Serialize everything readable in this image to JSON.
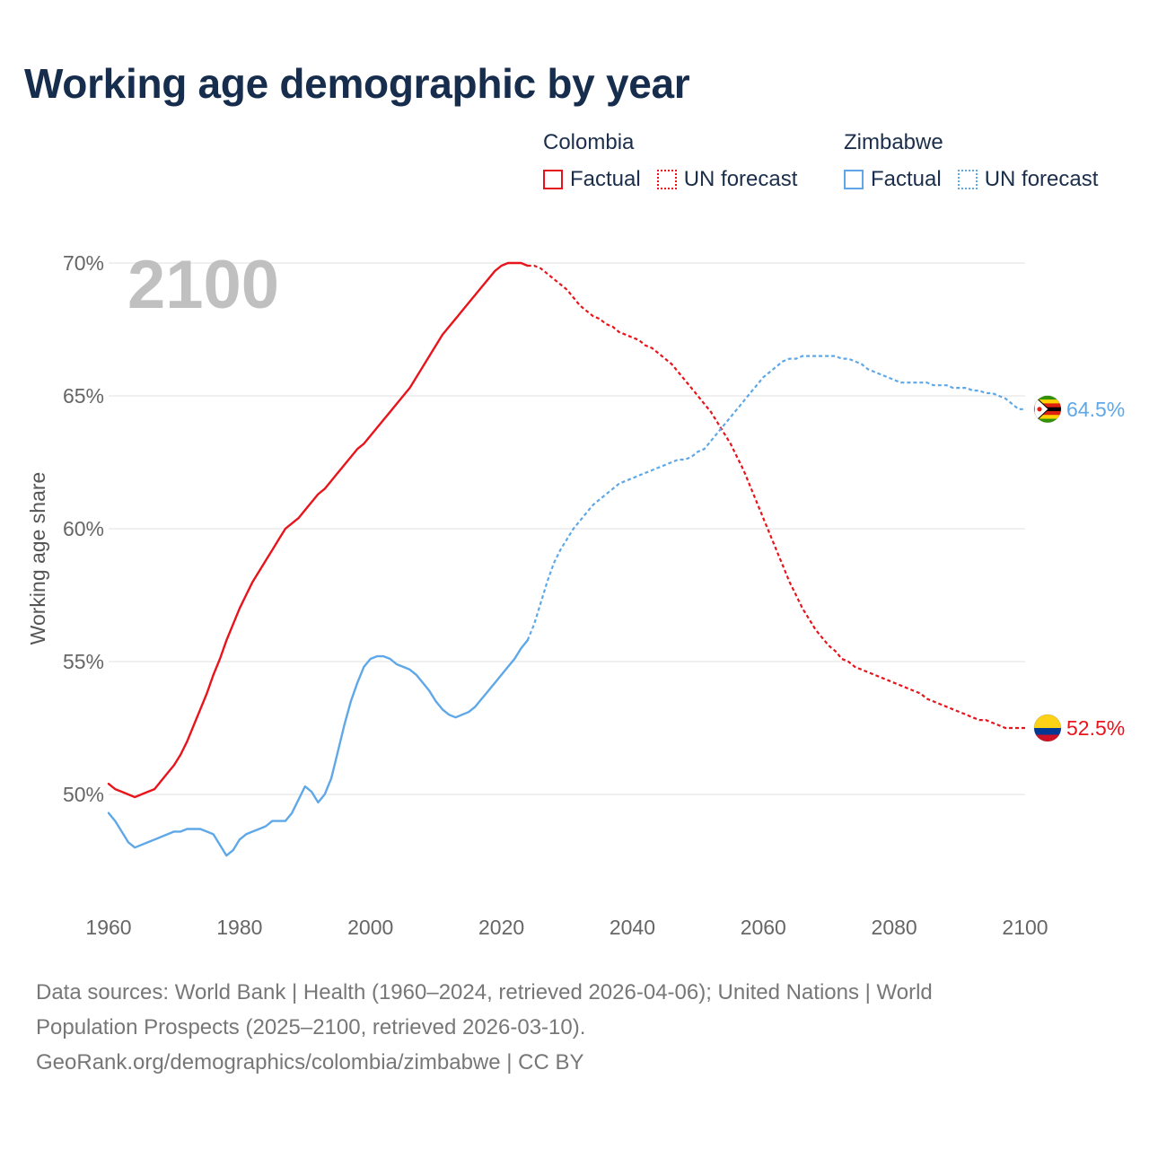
{
  "title": "Working age demographic by year",
  "legend": {
    "groups": [
      {
        "name": "Colombia",
        "color": "#e8141c",
        "factual_label": "Factual",
        "forecast_label": "UN forecast"
      },
      {
        "name": "Zimbabwe",
        "color": "#5fa8e8",
        "factual_label": "Factual",
        "forecast_label": "UN forecast"
      }
    ]
  },
  "footer": {
    "line1": "Data sources: World Bank | Health (1960–2024, retrieved 2026-04-06); United Nations | World",
    "line2": "Population Prospects (2025–2100, retrieved 2026-03-10).",
    "line3": "GeoRank.org/demographics/colombia/zimbabwe | CC BY"
  },
  "chart_data": {
    "type": "line",
    "title": "Working age demographic by year",
    "ylabel": "Working age share",
    "xlabel": "",
    "year_watermark": "2100",
    "xlim": [
      1960,
      2100
    ],
    "ylim": [
      46.5,
      71.5
    ],
    "x_ticks": [
      "1960",
      "1980",
      "2000",
      "2020",
      "2040",
      "2060",
      "2080",
      "2100"
    ],
    "y_ticks": [
      {
        "value": 50,
        "label": "50%"
      },
      {
        "value": 55,
        "label": "55%"
      },
      {
        "value": 60,
        "label": "60%"
      },
      {
        "value": 65,
        "label": "65%"
      },
      {
        "value": 70,
        "label": "70%"
      }
    ],
    "grid": true,
    "factual_until": 2024,
    "series": [
      {
        "name": "Colombia",
        "color": "#e8141c",
        "end_label": "52.5%",
        "end_value": 52.5,
        "flag_colors": [
          "#fcd116",
          "#003893",
          "#ce1126"
        ],
        "points": [
          [
            1960,
            50.4
          ],
          [
            1961,
            50.2
          ],
          [
            1962,
            50.1
          ],
          [
            1963,
            50.0
          ],
          [
            1964,
            49.9
          ],
          [
            1965,
            50.0
          ],
          [
            1966,
            50.1
          ],
          [
            1967,
            50.2
          ],
          [
            1968,
            50.5
          ],
          [
            1969,
            50.8
          ],
          [
            1970,
            51.1
          ],
          [
            1971,
            51.5
          ],
          [
            1972,
            52.0
          ],
          [
            1973,
            52.6
          ],
          [
            1974,
            53.2
          ],
          [
            1975,
            53.8
          ],
          [
            1976,
            54.5
          ],
          [
            1977,
            55.1
          ],
          [
            1978,
            55.8
          ],
          [
            1979,
            56.4
          ],
          [
            1980,
            57.0
          ],
          [
            1981,
            57.5
          ],
          [
            1982,
            58.0
          ],
          [
            1983,
            58.4
          ],
          [
            1984,
            58.8
          ],
          [
            1985,
            59.2
          ],
          [
            1986,
            59.6
          ],
          [
            1987,
            60.0
          ],
          [
            1988,
            60.2
          ],
          [
            1989,
            60.4
          ],
          [
            1990,
            60.7
          ],
          [
            1991,
            61.0
          ],
          [
            1992,
            61.3
          ],
          [
            1993,
            61.5
          ],
          [
            1994,
            61.8
          ],
          [
            1995,
            62.1
          ],
          [
            1996,
            62.4
          ],
          [
            1997,
            62.7
          ],
          [
            1998,
            63.0
          ],
          [
            1999,
            63.2
          ],
          [
            2000,
            63.5
          ],
          [
            2001,
            63.8
          ],
          [
            2002,
            64.1
          ],
          [
            2003,
            64.4
          ],
          [
            2004,
            64.7
          ],
          [
            2005,
            65.0
          ],
          [
            2006,
            65.3
          ],
          [
            2007,
            65.7
          ],
          [
            2008,
            66.1
          ],
          [
            2009,
            66.5
          ],
          [
            2010,
            66.9
          ],
          [
            2011,
            67.3
          ],
          [
            2012,
            67.6
          ],
          [
            2013,
            67.9
          ],
          [
            2014,
            68.2
          ],
          [
            2015,
            68.5
          ],
          [
            2016,
            68.8
          ],
          [
            2017,
            69.1
          ],
          [
            2018,
            69.4
          ],
          [
            2019,
            69.7
          ],
          [
            2020,
            69.9
          ],
          [
            2021,
            70.0
          ],
          [
            2022,
            70.0
          ],
          [
            2023,
            70.0
          ],
          [
            2024,
            69.9
          ],
          [
            2025,
            69.9
          ],
          [
            2026,
            69.8
          ],
          [
            2027,
            69.6
          ],
          [
            2028,
            69.4
          ],
          [
            2029,
            69.2
          ],
          [
            2030,
            69.0
          ],
          [
            2031,
            68.7
          ],
          [
            2032,
            68.4
          ],
          [
            2033,
            68.2
          ],
          [
            2034,
            68.0
          ],
          [
            2035,
            67.9
          ],
          [
            2036,
            67.7
          ],
          [
            2037,
            67.6
          ],
          [
            2038,
            67.4
          ],
          [
            2039,
            67.3
          ],
          [
            2040,
            67.2
          ],
          [
            2041,
            67.1
          ],
          [
            2042,
            66.9
          ],
          [
            2043,
            66.8
          ],
          [
            2044,
            66.6
          ],
          [
            2045,
            66.4
          ],
          [
            2046,
            66.2
          ],
          [
            2047,
            65.9
          ],
          [
            2048,
            65.6
          ],
          [
            2049,
            65.3
          ],
          [
            2050,
            65.0
          ],
          [
            2051,
            64.7
          ],
          [
            2052,
            64.4
          ],
          [
            2053,
            64.0
          ],
          [
            2054,
            63.6
          ],
          [
            2055,
            63.2
          ],
          [
            2056,
            62.7
          ],
          [
            2057,
            62.2
          ],
          [
            2058,
            61.6
          ],
          [
            2059,
            61.0
          ],
          [
            2060,
            60.4
          ],
          [
            2061,
            59.8
          ],
          [
            2062,
            59.2
          ],
          [
            2063,
            58.6
          ],
          [
            2064,
            58.0
          ],
          [
            2065,
            57.5
          ],
          [
            2066,
            57.0
          ],
          [
            2067,
            56.6
          ],
          [
            2068,
            56.2
          ],
          [
            2069,
            55.9
          ],
          [
            2070,
            55.6
          ],
          [
            2071,
            55.4
          ],
          [
            2072,
            55.1
          ],
          [
            2073,
            55.0
          ],
          [
            2074,
            54.8
          ],
          [
            2075,
            54.7
          ],
          [
            2076,
            54.6
          ],
          [
            2077,
            54.5
          ],
          [
            2078,
            54.4
          ],
          [
            2079,
            54.3
          ],
          [
            2080,
            54.2
          ],
          [
            2081,
            54.1
          ],
          [
            2082,
            54.0
          ],
          [
            2083,
            53.9
          ],
          [
            2084,
            53.8
          ],
          [
            2085,
            53.6
          ],
          [
            2086,
            53.5
          ],
          [
            2087,
            53.4
          ],
          [
            2088,
            53.3
          ],
          [
            2089,
            53.2
          ],
          [
            2090,
            53.1
          ],
          [
            2091,
            53.0
          ],
          [
            2092,
            52.9
          ],
          [
            2093,
            52.8
          ],
          [
            2094,
            52.8
          ],
          [
            2095,
            52.7
          ],
          [
            2096,
            52.6
          ],
          [
            2097,
            52.5
          ],
          [
            2098,
            52.5
          ],
          [
            2099,
            52.5
          ],
          [
            2100,
            52.5
          ]
        ]
      },
      {
        "name": "Zimbabwe",
        "color": "#5fa8e8",
        "end_label": "64.5%",
        "end_value": 64.5,
        "flag_colors": [
          "#319208",
          "#ffd200",
          "#de2010",
          "#000000"
        ],
        "points": [
          [
            1960,
            49.3
          ],
          [
            1961,
            49.0
          ],
          [
            1962,
            48.6
          ],
          [
            1963,
            48.2
          ],
          [
            1964,
            48.0
          ],
          [
            1965,
            48.1
          ],
          [
            1966,
            48.2
          ],
          [
            1967,
            48.3
          ],
          [
            1968,
            48.4
          ],
          [
            1969,
            48.5
          ],
          [
            1970,
            48.6
          ],
          [
            1971,
            48.6
          ],
          [
            1972,
            48.7
          ],
          [
            1973,
            48.7
          ],
          [
            1974,
            48.7
          ],
          [
            1975,
            48.6
          ],
          [
            1976,
            48.5
          ],
          [
            1977,
            48.1
          ],
          [
            1978,
            47.7
          ],
          [
            1979,
            47.9
          ],
          [
            1980,
            48.3
          ],
          [
            1981,
            48.5
          ],
          [
            1982,
            48.6
          ],
          [
            1983,
            48.7
          ],
          [
            1984,
            48.8
          ],
          [
            1985,
            49.0
          ],
          [
            1986,
            49.0
          ],
          [
            1987,
            49.0
          ],
          [
            1988,
            49.3
          ],
          [
            1989,
            49.8
          ],
          [
            1990,
            50.3
          ],
          [
            1991,
            50.1
          ],
          [
            1992,
            49.7
          ],
          [
            1993,
            50.0
          ],
          [
            1994,
            50.6
          ],
          [
            1995,
            51.6
          ],
          [
            1996,
            52.6
          ],
          [
            1997,
            53.5
          ],
          [
            1998,
            54.2
          ],
          [
            1999,
            54.8
          ],
          [
            2000,
            55.1
          ],
          [
            2001,
            55.2
          ],
          [
            2002,
            55.2
          ],
          [
            2003,
            55.1
          ],
          [
            2004,
            54.9
          ],
          [
            2005,
            54.8
          ],
          [
            2006,
            54.7
          ],
          [
            2007,
            54.5
          ],
          [
            2008,
            54.2
          ],
          [
            2009,
            53.9
          ],
          [
            2010,
            53.5
          ],
          [
            2011,
            53.2
          ],
          [
            2012,
            53.0
          ],
          [
            2013,
            52.9
          ],
          [
            2014,
            53.0
          ],
          [
            2015,
            53.1
          ],
          [
            2016,
            53.3
          ],
          [
            2017,
            53.6
          ],
          [
            2018,
            53.9
          ],
          [
            2019,
            54.2
          ],
          [
            2020,
            54.5
          ],
          [
            2021,
            54.8
          ],
          [
            2022,
            55.1
          ],
          [
            2023,
            55.5
          ],
          [
            2024,
            55.8
          ],
          [
            2025,
            56.4
          ],
          [
            2026,
            57.2
          ],
          [
            2027,
            58.0
          ],
          [
            2028,
            58.7
          ],
          [
            2029,
            59.2
          ],
          [
            2030,
            59.6
          ],
          [
            2031,
            60.0
          ],
          [
            2032,
            60.3
          ],
          [
            2033,
            60.6
          ],
          [
            2034,
            60.9
          ],
          [
            2035,
            61.1
          ],
          [
            2036,
            61.3
          ],
          [
            2037,
            61.5
          ],
          [
            2038,
            61.7
          ],
          [
            2039,
            61.8
          ],
          [
            2040,
            61.9
          ],
          [
            2041,
            62.0
          ],
          [
            2042,
            62.1
          ],
          [
            2043,
            62.2
          ],
          [
            2044,
            62.3
          ],
          [
            2045,
            62.4
          ],
          [
            2046,
            62.5
          ],
          [
            2047,
            62.6
          ],
          [
            2048,
            62.6
          ],
          [
            2049,
            62.7
          ],
          [
            2050,
            62.9
          ],
          [
            2051,
            63.0
          ],
          [
            2052,
            63.3
          ],
          [
            2053,
            63.6
          ],
          [
            2054,
            63.9
          ],
          [
            2055,
            64.2
          ],
          [
            2056,
            64.5
          ],
          [
            2057,
            64.8
          ],
          [
            2058,
            65.1
          ],
          [
            2059,
            65.4
          ],
          [
            2060,
            65.7
          ],
          [
            2061,
            65.9
          ],
          [
            2062,
            66.1
          ],
          [
            2063,
            66.3
          ],
          [
            2064,
            66.4
          ],
          [
            2065,
            66.4
          ],
          [
            2066,
            66.5
          ],
          [
            2067,
            66.5
          ],
          [
            2068,
            66.5
          ],
          [
            2069,
            66.5
          ],
          [
            2070,
            66.5
          ],
          [
            2071,
            66.5
          ],
          [
            2072,
            66.4
          ],
          [
            2073,
            66.4
          ],
          [
            2074,
            66.3
          ],
          [
            2075,
            66.2
          ],
          [
            2076,
            66.0
          ],
          [
            2077,
            65.9
          ],
          [
            2078,
            65.8
          ],
          [
            2079,
            65.7
          ],
          [
            2080,
            65.6
          ],
          [
            2081,
            65.5
          ],
          [
            2082,
            65.5
          ],
          [
            2083,
            65.5
          ],
          [
            2084,
            65.5
          ],
          [
            2085,
            65.5
          ],
          [
            2086,
            65.4
          ],
          [
            2087,
            65.4
          ],
          [
            2088,
            65.4
          ],
          [
            2089,
            65.3
          ],
          [
            2090,
            65.3
          ],
          [
            2091,
            65.3
          ],
          [
            2092,
            65.2
          ],
          [
            2093,
            65.2
          ],
          [
            2094,
            65.1
          ],
          [
            2095,
            65.1
          ],
          [
            2096,
            65.0
          ],
          [
            2097,
            64.9
          ],
          [
            2098,
            64.7
          ],
          [
            2099,
            64.5
          ],
          [
            2100,
            64.5
          ]
        ]
      }
    ]
  }
}
